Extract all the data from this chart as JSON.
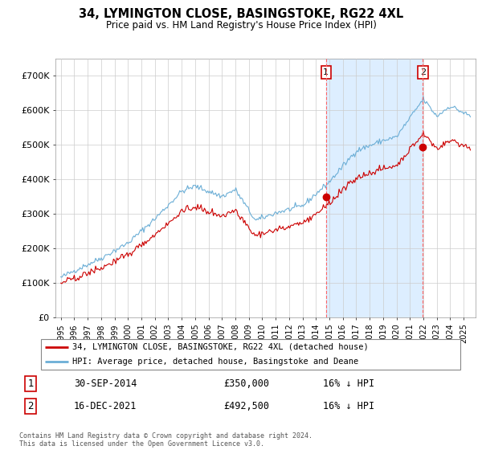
{
  "title": "34, LYMINGTON CLOSE, BASINGSTOKE, RG22 4XL",
  "subtitle": "Price paid vs. HM Land Registry's House Price Index (HPI)",
  "legend_line1": "34, LYMINGTON CLOSE, BASINGSTOKE, RG22 4XL (detached house)",
  "legend_line2": "HPI: Average price, detached house, Basingstoke and Deane",
  "transaction1_date": "30-SEP-2014",
  "transaction1_price": "£350,000",
  "transaction1_hpi": "16% ↓ HPI",
  "transaction2_date": "16-DEC-2021",
  "transaction2_price": "£492,500",
  "transaction2_hpi": "16% ↓ HPI",
  "footnote": "Contains HM Land Registry data © Crown copyright and database right 2024.\nThis data is licensed under the Open Government Licence v3.0.",
  "hpi_color": "#6baed6",
  "price_color": "#cc0000",
  "shade_color": "#ddeeff",
  "vline_color": "#ff6666",
  "ylim": [
    0,
    750000
  ],
  "yticks": [
    0,
    100000,
    200000,
    300000,
    400000,
    500000,
    600000,
    700000
  ],
  "ytick_labels": [
    "£0",
    "£100K",
    "£200K",
    "£300K",
    "£400K",
    "£500K",
    "£600K",
    "£700K"
  ],
  "background_color": "#ffffff",
  "grid_color": "#cccccc",
  "sale1_t": 2014.75,
  "sale1_price": 350000,
  "sale2_t": 2021.958,
  "sale2_price": 492500
}
